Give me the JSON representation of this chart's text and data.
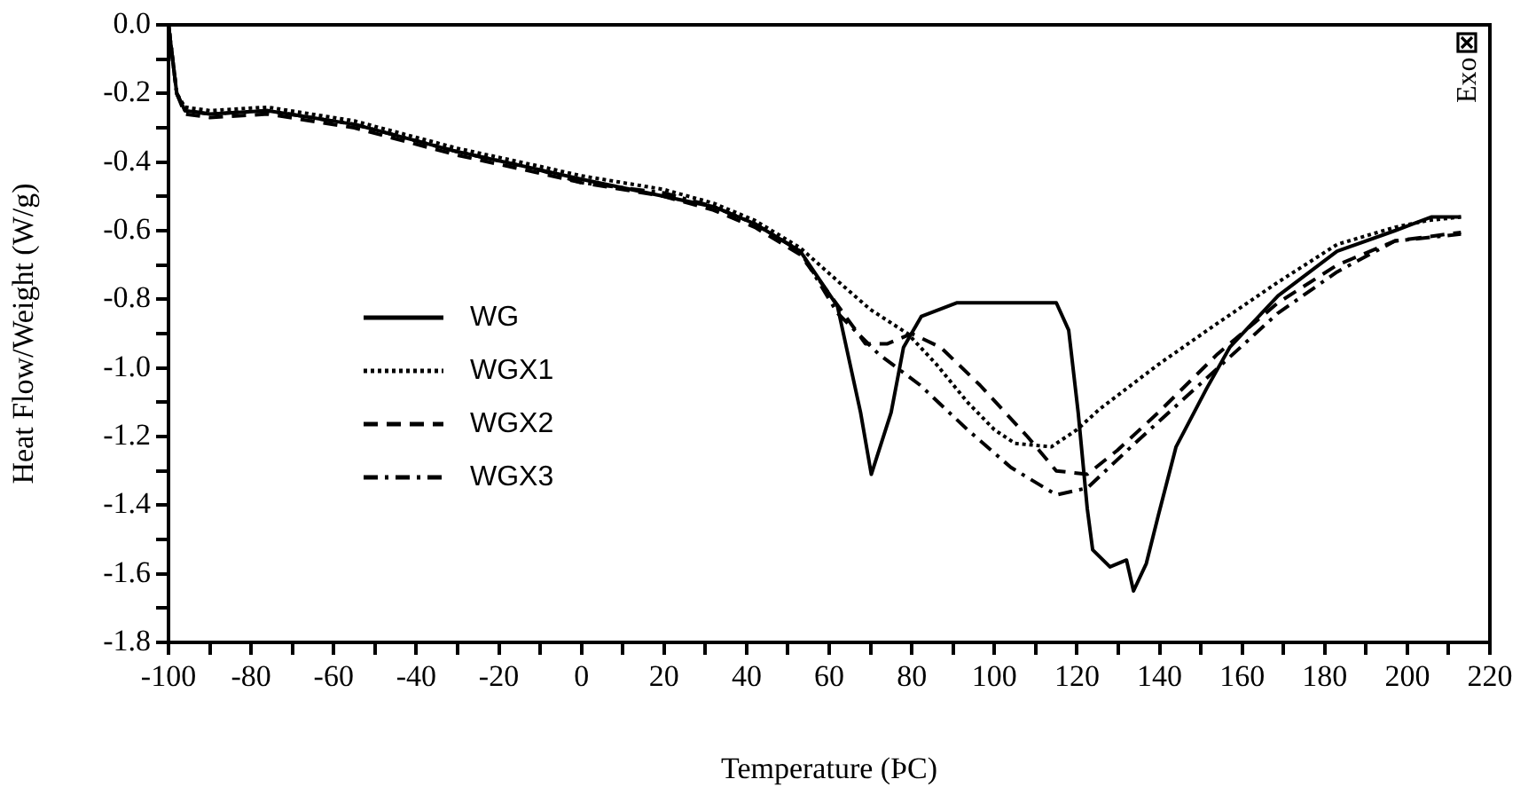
{
  "chart_data": {
    "type": "line",
    "xlabel": "Temperature (ÞC)",
    "ylabel": "Heat Flow/Weight (W/g)",
    "annotations": [
      "Exo"
    ],
    "xlim": [
      -100,
      220
    ],
    "ylim": [
      -1.8,
      0
    ],
    "xticks": [
      -100,
      {
        "value": -90,
        "label": null
      },
      -80,
      {
        "value": -70,
        "label": null
      },
      -60,
      {
        "value": -50,
        "label": null
      },
      -40,
      {
        "value": -30,
        "label": null
      },
      -20,
      {
        "value": -10,
        "label": null
      },
      0,
      {
        "value": 10,
        "label": null
      },
      20,
      {
        "value": 30,
        "label": null
      },
      40,
      {
        "value": 50,
        "label": null
      },
      60,
      {
        "value": 70,
        "label": null
      },
      80,
      {
        "value": 90,
        "label": null
      },
      100,
      {
        "value": 110,
        "label": null
      },
      120,
      {
        "value": 130,
        "label": null
      },
      140,
      {
        "value": 150,
        "label": null
      },
      160,
      {
        "value": 170,
        "label": null
      },
      180,
      {
        "value": 190,
        "label": null
      },
      200,
      {
        "value": 210,
        "label": null
      },
      220
    ],
    "yticks": [
      {
        "value": 0,
        "label": "0.0"
      },
      {
        "value": -0.1,
        "label": null
      },
      -0.2,
      {
        "value": -0.3,
        "label": null
      },
      -0.4,
      {
        "value": -0.5,
        "label": null
      },
      -0.6,
      {
        "value": -0.7,
        "label": null
      },
      -0.8,
      {
        "value": -0.9,
        "label": null
      },
      {
        "value": -1.0,
        "label": "-1.0"
      },
      {
        "value": -1.1,
        "label": null
      },
      -1.2,
      {
        "value": -1.3,
        "label": null
      },
      -1.4,
      {
        "value": -1.5,
        "label": null
      },
      -1.6,
      {
        "value": -1.7,
        "label": null
      },
      -1.8
    ],
    "grid": false,
    "legend": "left",
    "marker": "none",
    "series": [
      {
        "name": "WG",
        "color": "#000000",
        "line_style": "solid",
        "x": [
          -100,
          -99,
          -98,
          -96,
          -90,
          -76,
          -55,
          -30,
          -11,
          0,
          20,
          32,
          42,
          53,
          62,
          67.6,
          70.2,
          75,
          78,
          82.3,
          91,
          115,
          118,
          120.3,
          122.5,
          123.8,
          128,
          132,
          133.7,
          136.8,
          139.7,
          144,
          151.4,
          157,
          168.7,
          183,
          197,
          205.8,
          213
        ],
        "values": [
          0,
          -0.1,
          -0.2,
          -0.25,
          -0.26,
          -0.25,
          -0.29,
          -0.37,
          -0.42,
          -0.45,
          -0.5,
          -0.53,
          -0.58,
          -0.66,
          -0.82,
          -1.13,
          -1.31,
          -1.13,
          -0.94,
          -0.85,
          -0.81,
          -0.81,
          -0.89,
          -1.13,
          -1.41,
          -1.53,
          -1.58,
          -1.56,
          -1.65,
          -1.57,
          -1.43,
          -1.23,
          -1.06,
          -0.94,
          -0.79,
          -0.66,
          -0.6,
          -0.56,
          -0.56
        ]
      },
      {
        "name": "WGX1",
        "color": "#000000",
        "line_style": "dotted",
        "x": [
          -100,
          -99,
          -98,
          -96,
          -90,
          -76,
          -55,
          -30,
          -11,
          0,
          20,
          32,
          42,
          53,
          63.3,
          70,
          79,
          86,
          93.5,
          100,
          105,
          113.8,
          120,
          125.5,
          139.7,
          154,
          168.7,
          183,
          197,
          205,
          213
        ],
        "values": [
          0,
          -0.1,
          -0.2,
          -0.24,
          -0.25,
          -0.24,
          -0.28,
          -0.36,
          -0.41,
          -0.44,
          -0.48,
          -0.52,
          -0.57,
          -0.65,
          -0.76,
          -0.83,
          -0.9,
          -0.99,
          -1.1,
          -1.18,
          -1.22,
          -1.23,
          -1.18,
          -1.12,
          -0.99,
          -0.87,
          -0.75,
          -0.64,
          -0.59,
          -0.57,
          -0.56
        ]
      },
      {
        "name": "WGX2",
        "color": "#000000",
        "line_style": "dashed",
        "x": [
          -100,
          -99,
          -98,
          -96,
          -90,
          -76,
          -55,
          -30,
          -11,
          0,
          20,
          32,
          42,
          53,
          61,
          68.8,
          74,
          80,
          87,
          96.5,
          108,
          115,
          122.5,
          129.8,
          139.7,
          154,
          168.7,
          183,
          197,
          213
        ],
        "values": [
          0,
          -0.1,
          -0.2,
          -0.26,
          -0.27,
          -0.26,
          -0.3,
          -0.38,
          -0.43,
          -0.46,
          -0.5,
          -0.54,
          -0.59,
          -0.67,
          -0.8,
          -0.93,
          -0.93,
          -0.9,
          -0.94,
          -1.05,
          -1.2,
          -1.3,
          -1.31,
          -1.24,
          -1.13,
          -0.96,
          -0.81,
          -0.7,
          -0.63,
          -0.605
        ]
      },
      {
        "name": "WGX3",
        "color": "#000000",
        "line_style": "dashdot",
        "x": [
          -100,
          -99,
          -98,
          -96,
          -90,
          -76,
          -55,
          -30,
          -11,
          0,
          20,
          32,
          42,
          53,
          62,
          72,
          82,
          93.5,
          104,
          115,
          122.5,
          134,
          151.4,
          168.7,
          183,
          197,
          213
        ],
        "values": [
          0,
          -0.1,
          -0.2,
          -0.25,
          -0.26,
          -0.25,
          -0.29,
          -0.37,
          -0.42,
          -0.46,
          -0.49,
          -0.53,
          -0.58,
          -0.66,
          -0.84,
          -0.96,
          -1.05,
          -1.18,
          -1.29,
          -1.37,
          -1.35,
          -1.22,
          -1.03,
          -0.84,
          -0.72,
          -0.63,
          -0.61
        ]
      }
    ]
  }
}
